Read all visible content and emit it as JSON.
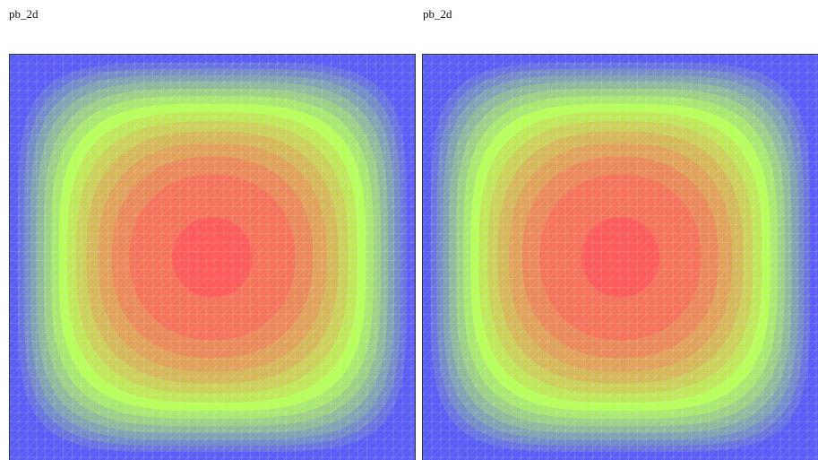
{
  "panels": [
    {
      "title": "pb_2d"
    },
    {
      "title": "pb_2d"
    }
  ],
  "colormap": {
    "low": "#5a5cf6",
    "mid": "#b6ff5a",
    "high": "#ff5a5a"
  },
  "contour_levels": 14,
  "mesh": "triangular"
}
